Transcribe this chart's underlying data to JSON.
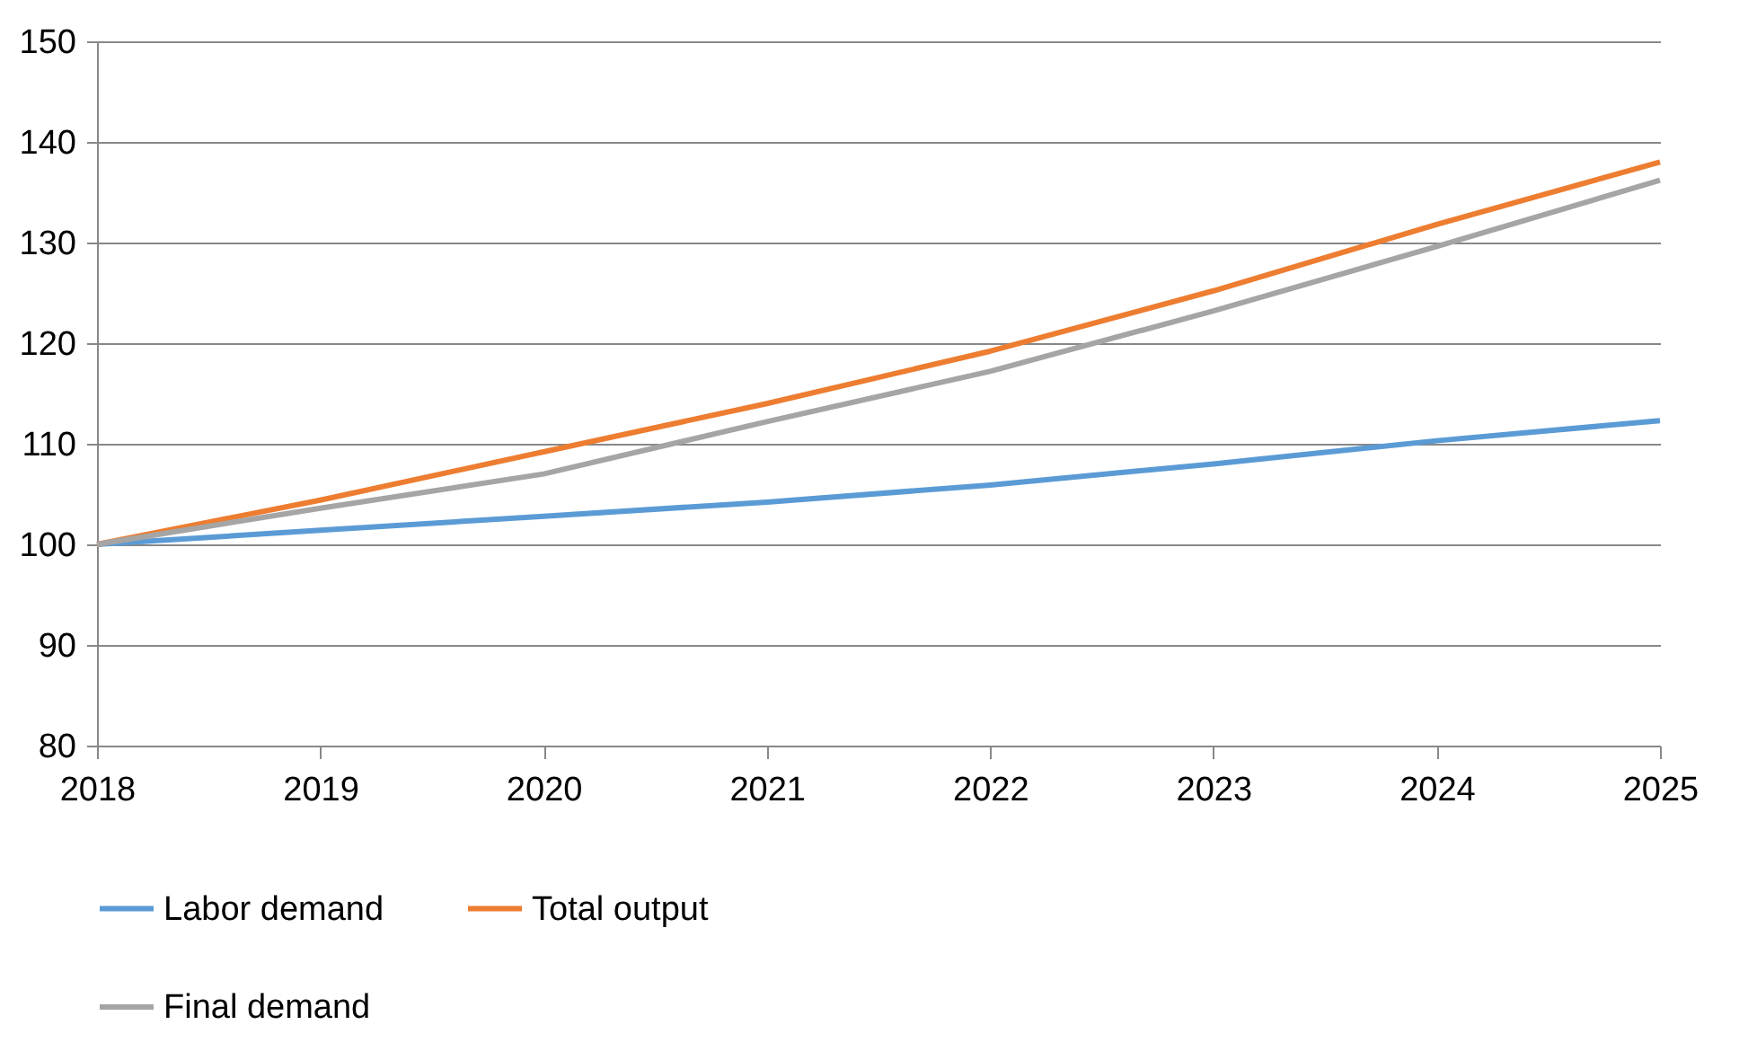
{
  "chart_data": {
    "type": "line",
    "x": [
      2018,
      2019,
      2020,
      2021,
      2022,
      2023,
      2024,
      2025
    ],
    "xlim": [
      2018,
      2025
    ],
    "xticks": [
      2018,
      2019,
      2020,
      2021,
      2022,
      2023,
      2024,
      2025
    ],
    "ylim": [
      80,
      150
    ],
    "yticks": [
      80,
      90,
      100,
      110,
      120,
      130,
      140,
      150
    ],
    "grid": "y",
    "legend": "bottom",
    "marker": "none",
    "line_style": "solid",
    "series": [
      {
        "name": "Labor demand",
        "color": "#5b9bd5",
        "values": [
          100,
          101.4,
          102.8,
          104.2,
          105.9,
          108.0,
          110.3,
          112.3
        ]
      },
      {
        "name": "Total output",
        "color": "#ed7d31",
        "values": [
          100,
          104.4,
          109.2,
          114.0,
          119.2,
          125.2,
          131.8,
          138.0
        ]
      },
      {
        "name": "Final demand",
        "color": "#a5a5a5",
        "values": [
          100,
          103.6,
          107.0,
          112.2,
          117.2,
          123.2,
          129.6,
          136.2
        ]
      }
    ]
  }
}
